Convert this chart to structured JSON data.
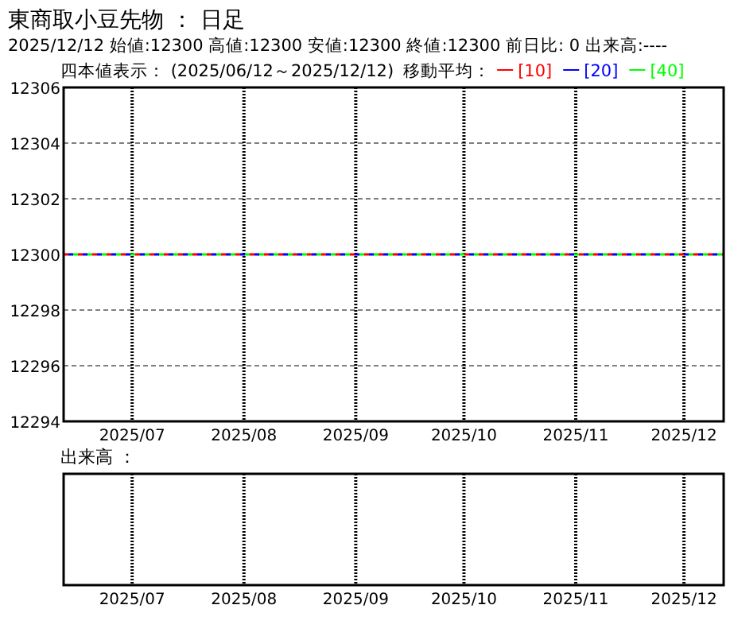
{
  "chart_data": [
    {
      "type": "line",
      "title": "東商取小豆先物 ： 日足",
      "annotations": [
        "2025/12/12 始値:12300 高値:12300 安値:12300 終値:12300 前日比: 0 出来高:----"
      ],
      "subtitle": "四本値表示： (2025/06/12～2025/12/12)",
      "legend_title": "移動平均：",
      "legend": "top",
      "series": [
        {
          "name": "[10]",
          "color": "#ff0000",
          "x": [
            "2025-06-12",
            "2025-12-12"
          ],
          "values": [
            12300,
            12300
          ],
          "line_style": "dashed"
        },
        {
          "name": "[20]",
          "color": "#0000ff",
          "x": [
            "2025-06-12",
            "2025-12-12"
          ],
          "values": [
            12300,
            12300
          ],
          "line_style": "dashed"
        },
        {
          "name": "[40]",
          "color": "#00ff00",
          "x": [
            "2025-06-12",
            "2025-12-12"
          ],
          "values": [
            12300,
            12300
          ],
          "line_style": "dashed"
        }
      ],
      "xlim": [
        "2025-06-12",
        "2025-12-12"
      ],
      "xticks": [
        {
          "value": "2025-07-01",
          "label": "2025/07"
        },
        {
          "value": "2025-08-01",
          "label": "2025/08"
        },
        {
          "value": "2025-09-01",
          "label": "2025/09"
        },
        {
          "value": "2025-10-01",
          "label": "2025/10"
        },
        {
          "value": "2025-11-01",
          "label": "2025/11"
        },
        {
          "value": "2025-12-01",
          "label": "2025/12"
        }
      ],
      "ylim": [
        12294,
        12306
      ],
      "yticks": [
        12294,
        12296,
        12298,
        12300,
        12302,
        12304,
        12306
      ],
      "grid": true
    },
    {
      "type": "other",
      "title": "出来高 ：",
      "annotations": [
        "2025/07",
        "2025/08",
        "2025/09",
        "2025/10",
        "2025/11",
        "2025/12"
      ]
    }
  ]
}
